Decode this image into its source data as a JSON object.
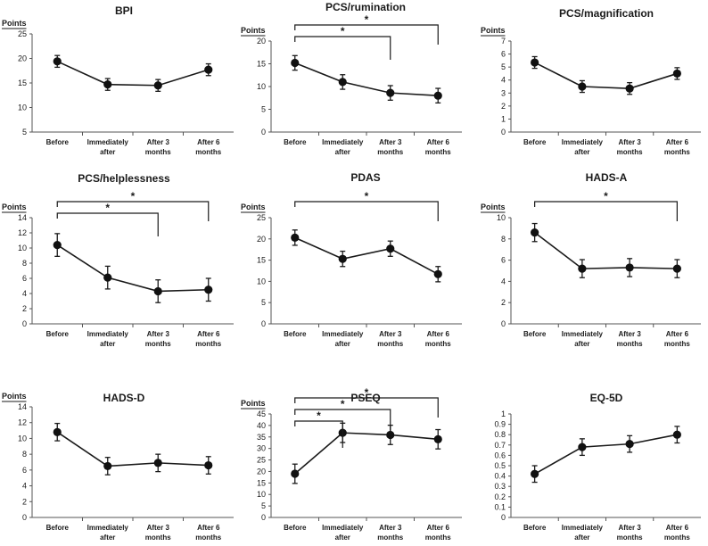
{
  "chart_data": [
    {
      "type": "line",
      "title": "BPI",
      "ylabel": "Points",
      "ylim": [
        5,
        25
      ],
      "yticks": [
        5,
        10,
        15,
        20,
        25
      ],
      "categories": [
        [
          "Before"
        ],
        [
          "Immediately",
          "after"
        ],
        [
          "After 3",
          "months"
        ],
        [
          "After 6",
          "months"
        ]
      ],
      "values": [
        19.4,
        14.7,
        14.5,
        17.7
      ],
      "errors": [
        1.2,
        1.2,
        1.2,
        1.2
      ],
      "significance": []
    },
    {
      "type": "line",
      "title": "PCS/rumination",
      "ylabel": "Points",
      "ylim": [
        0,
        20
      ],
      "yticks": [
        0,
        5,
        10,
        15,
        20
      ],
      "categories": [
        [
          "Before"
        ],
        [
          "Immediately",
          "after"
        ],
        [
          "After 3",
          "months"
        ],
        [
          "After 6",
          "months"
        ]
      ],
      "values": [
        15.2,
        11.0,
        8.6,
        8.0
      ],
      "errors": [
        1.6,
        1.6,
        1.6,
        1.6
      ],
      "significance": [
        {
          "from": 0,
          "to": 2,
          "label": "*"
        },
        {
          "from": 0,
          "to": 3,
          "label": "*"
        }
      ]
    },
    {
      "type": "line",
      "title": "PCS/magnification",
      "ylabel": "Points",
      "ylim": [
        0,
        7
      ],
      "yticks": [
        0,
        1,
        2,
        3,
        4,
        5,
        6,
        7
      ],
      "categories": [
        [
          "Before"
        ],
        [
          "Immediately",
          "after"
        ],
        [
          "After 3",
          "months"
        ],
        [
          "After 6",
          "months"
        ]
      ],
      "values": [
        5.35,
        3.5,
        3.35,
        4.5
      ],
      "errors": [
        0.45,
        0.45,
        0.45,
        0.45
      ],
      "significance": []
    },
    {
      "type": "line",
      "title": "PCS/helplessness",
      "ylabel": "Points",
      "ylim": [
        0,
        14
      ],
      "yticks": [
        0,
        2,
        4,
        6,
        8,
        10,
        12,
        14
      ],
      "categories": [
        [
          "Before"
        ],
        [
          "Immediately",
          "after"
        ],
        [
          "After 3",
          "months"
        ],
        [
          "After 6",
          "months"
        ]
      ],
      "values": [
        10.4,
        6.1,
        4.3,
        4.5
      ],
      "errors": [
        1.5,
        1.5,
        1.5,
        1.5
      ],
      "significance": [
        {
          "from": 0,
          "to": 2,
          "label": "*"
        },
        {
          "from": 0,
          "to": 3,
          "label": "*"
        }
      ]
    },
    {
      "type": "line",
      "title": "PDAS",
      "ylabel": "Points",
      "ylim": [
        0,
        25
      ],
      "yticks": [
        0,
        5,
        10,
        15,
        20,
        25
      ],
      "categories": [
        [
          "Before"
        ],
        [
          "Immediately",
          "after"
        ],
        [
          "After 3",
          "months"
        ],
        [
          "After 6",
          "months"
        ]
      ],
      "values": [
        20.3,
        15.3,
        17.7,
        11.7
      ],
      "errors": [
        1.8,
        1.8,
        1.8,
        1.8
      ],
      "significance": [
        {
          "from": 0,
          "to": 3,
          "label": "*"
        }
      ]
    },
    {
      "type": "line",
      "title": "HADS-A",
      "ylabel": "Points",
      "ylim": [
        0,
        10
      ],
      "yticks": [
        0,
        2,
        4,
        6,
        8,
        10
      ],
      "categories": [
        [
          "Before"
        ],
        [
          "Immediately",
          "after"
        ],
        [
          "After 3",
          "months"
        ],
        [
          "After 6",
          "months"
        ]
      ],
      "values": [
        8.6,
        5.2,
        5.3,
        5.2
      ],
      "errors": [
        0.85,
        0.85,
        0.85,
        0.85
      ],
      "significance": [
        {
          "from": 0,
          "to": 3,
          "label": "*"
        }
      ]
    },
    {
      "type": "line",
      "title": "HADS-D",
      "ylabel": "Points",
      "ylim": [
        0,
        14
      ],
      "yticks": [
        0,
        2,
        4,
        6,
        8,
        10,
        12,
        14
      ],
      "categories": [
        [
          "Before"
        ],
        [
          "Immediately",
          "after"
        ],
        [
          "After 3",
          "months"
        ],
        [
          "After 6",
          "months"
        ]
      ],
      "values": [
        10.8,
        6.5,
        6.9,
        6.6
      ],
      "errors": [
        1.1,
        1.1,
        1.1,
        1.1
      ],
      "significance": []
    },
    {
      "type": "line",
      "title": "PSEQ",
      "ylabel": "Points",
      "ylim": [
        0,
        45
      ],
      "yticks": [
        0,
        5,
        10,
        15,
        20,
        25,
        30,
        35,
        40,
        45
      ],
      "categories": [
        [
          "Before"
        ],
        [
          "Immediately",
          "after"
        ],
        [
          "After 3",
          "months"
        ],
        [
          "After 6",
          "months"
        ]
      ],
      "values": [
        19.0,
        36.8,
        35.9,
        34.0
      ],
      "errors": [
        4.2,
        4.2,
        4.2,
        4.2
      ],
      "significance": [
        {
          "from": 0,
          "to": 1,
          "label": "*"
        },
        {
          "from": 0,
          "to": 2,
          "label": "*"
        },
        {
          "from": 0,
          "to": 3,
          "label": "*"
        }
      ]
    },
    {
      "type": "line",
      "title": "EQ-5D",
      "ylabel": "",
      "ylim": [
        0,
        1
      ],
      "yticks": [
        0,
        0.1,
        0.2,
        0.3,
        0.4,
        0.5,
        0.6,
        0.7,
        0.8,
        0.9,
        1
      ],
      "categories": [
        [
          "Before"
        ],
        [
          "Immediately",
          "after"
        ],
        [
          "After 3",
          "months"
        ],
        [
          "After 6",
          "months"
        ]
      ],
      "values": [
        0.42,
        0.68,
        0.71,
        0.8
      ],
      "errors": [
        0.08,
        0.08,
        0.08,
        0.08
      ],
      "significance": []
    }
  ]
}
